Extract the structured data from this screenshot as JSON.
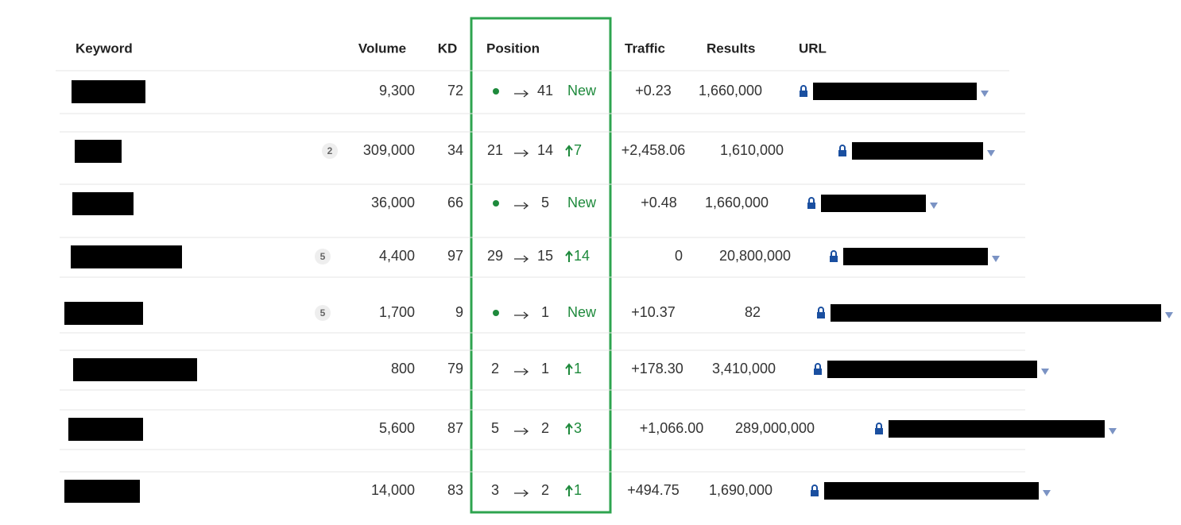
{
  "table": {
    "headers": [
      "Keyword",
      "Volume",
      "KD",
      "Position",
      "Traffic",
      "Results",
      "URL"
    ],
    "rows": [
      {
        "volume": "9,300",
        "kd": "72",
        "to": "41",
        "change": "New",
        "traffic": "+0.23",
        "results": "1,660,000"
      },
      {
        "badge": "2",
        "volume": "309,000",
        "kd": "34",
        "from": "21",
        "to": "14",
        "change": "7",
        "traffic": "+2,458.06",
        "results": "1,610,000"
      },
      {
        "volume": "36,000",
        "kd": "66",
        "to": "5",
        "change": "New",
        "traffic": "+0.48",
        "results": "1,660,000"
      },
      {
        "badge": "5",
        "volume": "4,400",
        "kd": "97",
        "from": "29",
        "to": "15",
        "change": "14",
        "traffic": "0",
        "results": "20,800,000"
      },
      {
        "badge": "5",
        "volume": "1,700",
        "kd": "9",
        "to": "1",
        "change": "New",
        "traffic": "+10.37",
        "results": "82"
      },
      {
        "volume": "800",
        "kd": "79",
        "from": "2",
        "to": "1",
        "change": "1",
        "traffic": "+178.30",
        "results": "3,410,000"
      },
      {
        "volume": "5,600",
        "kd": "87",
        "from": "5",
        "to": "2",
        "change": "3",
        "traffic": "+1,066.00",
        "results": "289,000,000"
      },
      {
        "volume": "14,000",
        "kd": "83",
        "from": "3",
        "to": "2",
        "change": "1",
        "traffic": "+494.75",
        "results": "1,690,000"
      }
    ]
  }
}
